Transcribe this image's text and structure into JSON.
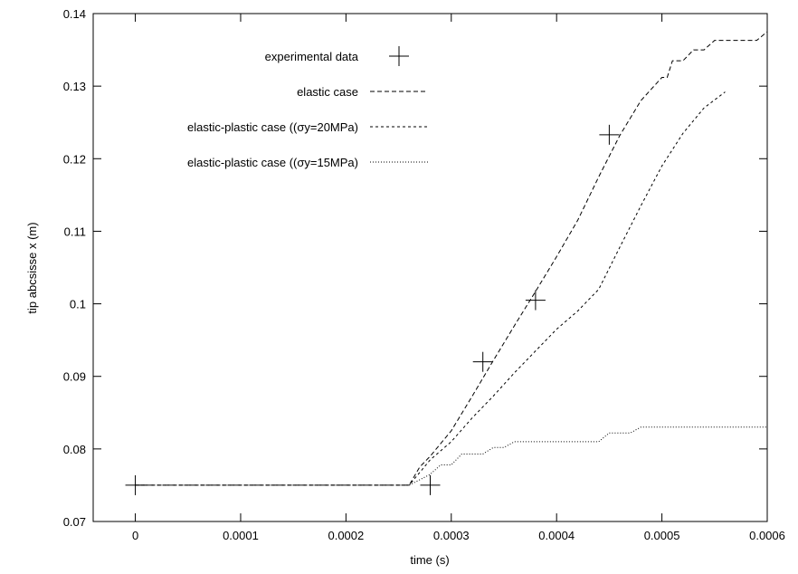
{
  "chart_data": {
    "type": "line",
    "title": "",
    "xlabel": "time (s)",
    "ylabel": "tip abcsisse x (m)",
    "xlim": [
      -4e-05,
      0.0006
    ],
    "ylim": [
      0.07,
      0.14
    ],
    "x_ticks": [
      0,
      0.0001,
      0.0002,
      0.0003,
      0.0004,
      0.0005,
      0.0006
    ],
    "x_tick_labels": [
      "0",
      "0.0001",
      "0.0002",
      "0.0003",
      "0.0004",
      "0.0005",
      "0.0006"
    ],
    "y_ticks": [
      0.07,
      0.08,
      0.09,
      0.1,
      0.11,
      0.12,
      0.13,
      0.14
    ],
    "y_tick_labels": [
      "0.07",
      "0.08",
      "0.09",
      "0.1",
      "0.11",
      "0.12",
      "0.13",
      "0.14"
    ],
    "grid": false,
    "legend_position": "top-center",
    "series": [
      {
        "name": "experimental data",
        "style": "cross",
        "points": [
          [
            0,
            0.075
          ],
          [
            0.00028,
            0.075
          ],
          [
            0.00033,
            0.092
          ],
          [
            0.00038,
            0.1005
          ],
          [
            0.00045,
            0.1233
          ]
        ]
      },
      {
        "name": "elastic case",
        "style": "dashed",
        "points": [
          [
            0,
            0.075
          ],
          [
            0.00026,
            0.075
          ],
          [
            0.00027,
            0.0775
          ],
          [
            0.00028,
            0.079
          ],
          [
            0.0003,
            0.0825
          ],
          [
            0.00032,
            0.0873
          ],
          [
            0.00034,
            0.0922
          ],
          [
            0.00036,
            0.097
          ],
          [
            0.00038,
            0.1017
          ],
          [
            0.0004,
            0.1065
          ],
          [
            0.00042,
            0.1115
          ],
          [
            0.00044,
            0.1175
          ],
          [
            0.00046,
            0.1232
          ],
          [
            0.00048,
            0.128
          ],
          [
            0.0005,
            0.1312
          ],
          [
            0.000505,
            0.1312
          ],
          [
            0.00051,
            0.1335
          ],
          [
            0.00052,
            0.1335
          ],
          [
            0.00053,
            0.135
          ],
          [
            0.00054,
            0.135
          ],
          [
            0.00055,
            0.1363
          ],
          [
            0.00059,
            0.1363
          ],
          [
            0.0006,
            0.1375
          ]
        ]
      },
      {
        "name": "elastic-plastic case ((σy=20MPa)",
        "style": "dashed-short",
        "points": [
          [
            0,
            0.075
          ],
          [
            0.00026,
            0.075
          ],
          [
            0.00028,
            0.0785
          ],
          [
            0.0003,
            0.081
          ],
          [
            0.00032,
            0.0843
          ],
          [
            0.00034,
            0.0873
          ],
          [
            0.00036,
            0.0905
          ],
          [
            0.00038,
            0.0935
          ],
          [
            0.0004,
            0.0965
          ],
          [
            0.00042,
            0.099
          ],
          [
            0.00044,
            0.102
          ],
          [
            0.00046,
            0.1078
          ],
          [
            0.00048,
            0.1135
          ],
          [
            0.0005,
            0.119
          ],
          [
            0.00052,
            0.1235
          ],
          [
            0.00054,
            0.127
          ],
          [
            0.00056,
            0.1292
          ]
        ]
      },
      {
        "name": "elastic-plastic case ((σy=15MPa)",
        "style": "dotted",
        "points": [
          [
            0,
            0.075
          ],
          [
            0.00026,
            0.075
          ],
          [
            0.00028,
            0.0765
          ],
          [
            0.00029,
            0.0778
          ],
          [
            0.0003,
            0.0778
          ],
          [
            0.00031,
            0.0793
          ],
          [
            0.00033,
            0.0793
          ],
          [
            0.00034,
            0.0802
          ],
          [
            0.00035,
            0.0802
          ],
          [
            0.00036,
            0.081
          ],
          [
            0.00044,
            0.081
          ],
          [
            0.00045,
            0.0822
          ],
          [
            0.00047,
            0.0822
          ],
          [
            0.00048,
            0.083
          ],
          [
            0.0006,
            0.083
          ]
        ]
      }
    ]
  }
}
